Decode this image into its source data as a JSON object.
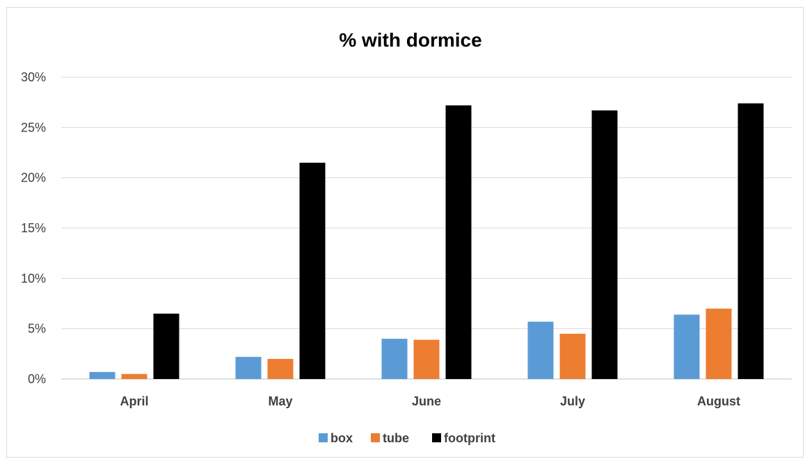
{
  "chart_data": {
    "type": "bar",
    "title": "% with dormice",
    "categories": [
      "April",
      "May",
      "June",
      "July",
      "August"
    ],
    "series": [
      {
        "name": "box",
        "color": "#5b9bd5",
        "values": [
          0.7,
          2.2,
          4.0,
          5.7,
          6.4
        ]
      },
      {
        "name": "tube",
        "color": "#ed7d31",
        "values": [
          0.5,
          2.0,
          3.9,
          4.5,
          7.0
        ]
      },
      {
        "name": "footprint",
        "color": "#000000",
        "values": [
          6.5,
          21.5,
          27.2,
          26.7,
          27.4
        ]
      }
    ],
    "ylim": [
      0,
      30
    ],
    "yticks": [
      0,
      5,
      10,
      15,
      20,
      25,
      30
    ],
    "ytick_labels": [
      "0%",
      "5%",
      "10%",
      "15%",
      "20%",
      "25%",
      "30%"
    ],
    "xlabel": "",
    "ylabel": "",
    "grid": true,
    "legend_position": "bottom"
  }
}
